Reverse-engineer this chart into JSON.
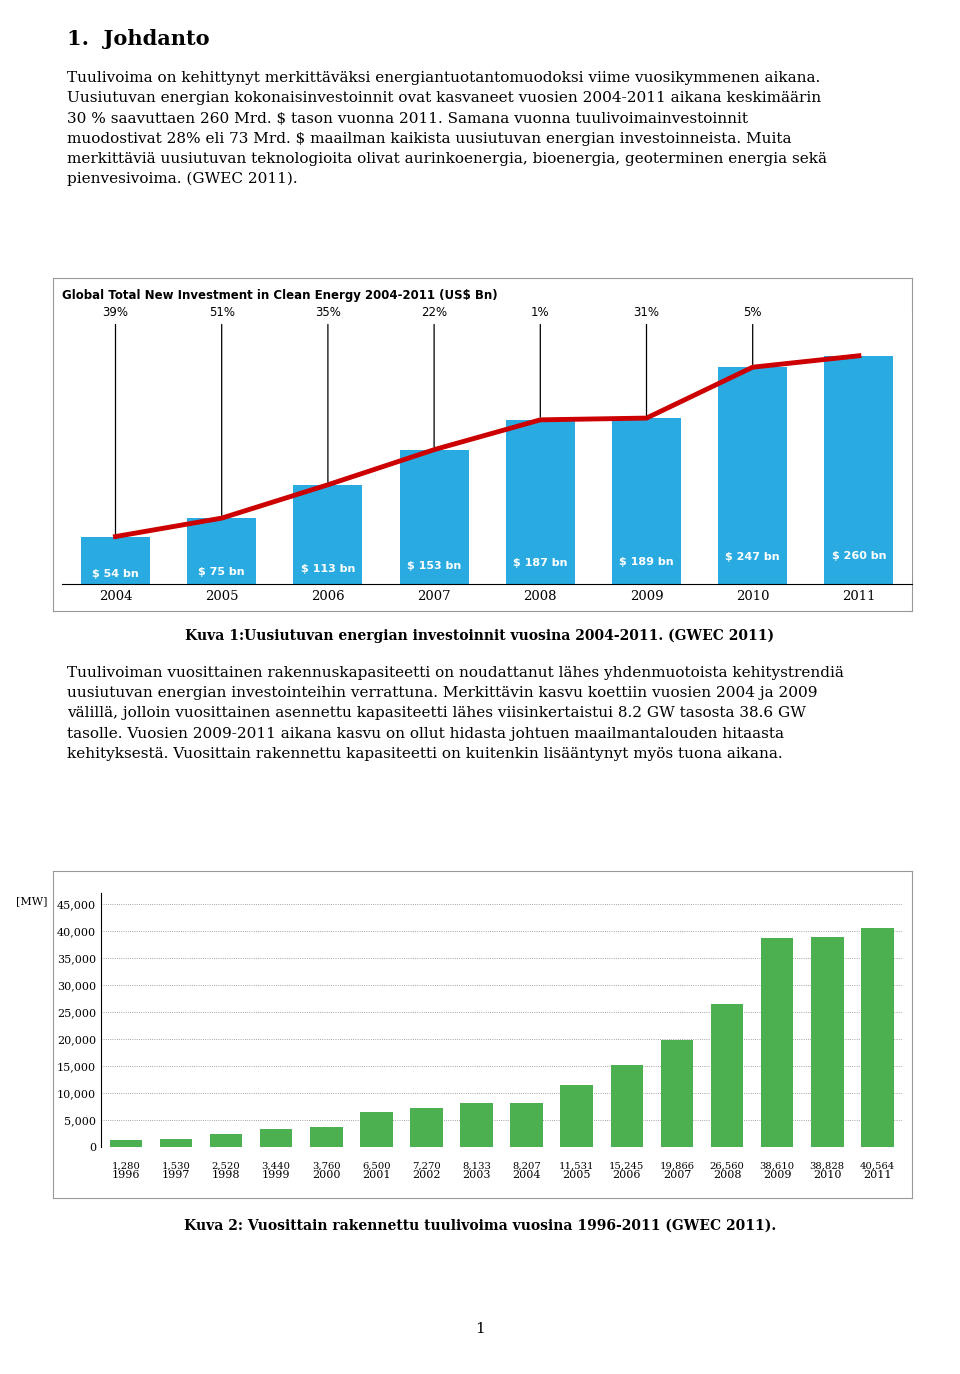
{
  "page_title": "1.  Johdanto",
  "chart1_title": "Global Total New Investment in Clean Energy 2004-2011 (US$ Bn)",
  "chart1_years": [
    "2004",
    "2005",
    "2006",
    "2007",
    "2008",
    "2009",
    "2010",
    "2011"
  ],
  "chart1_values": [
    54,
    75,
    113,
    153,
    187,
    189,
    247,
    260
  ],
  "chart1_labels": [
    "$ 54 bn",
    "$ 75 bn",
    "$ 113 bn",
    "$ 153 bn",
    "$ 187 bn",
    "$ 189 bn",
    "$ 247 bn",
    "$ 260 bn"
  ],
  "chart1_percentages": [
    "39%",
    "51%",
    "35%",
    "22%",
    "1%",
    "31%",
    "5%"
  ],
  "chart1_pct_positions": [
    0,
    1,
    2,
    3,
    4,
    5,
    6
  ],
  "chart1_bar_color": "#29ABE2",
  "chart1_line_color": "#CC0000",
  "chart1_caption": "Kuva 1:Uusiutuvan energian investoinnit vuosina 2004-2011. (GWEC 2011)",
  "chart2_years": [
    "1996",
    "1997",
    "1998",
    "1999",
    "2000",
    "2001",
    "2002",
    "2003",
    "2004",
    "2005",
    "2006",
    "2007",
    "2008",
    "2009",
    "2010",
    "2011"
  ],
  "chart2_values": [
    1280,
    1530,
    2520,
    3440,
    3760,
    6500,
    7270,
    8133,
    8207,
    11531,
    15245,
    19866,
    26560,
    38610,
    38828,
    40564
  ],
  "chart2_bottom_labels": [
    "1,280",
    "1,530",
    "2,520",
    "3,440",
    "3,760",
    "6,500",
    "7,270",
    "8,133",
    "8,207",
    "11,531",
    "15,245",
    "19,866",
    "26,560",
    "38,610",
    "38,828",
    "40,564"
  ],
  "chart2_bar_color": "#4CAF50",
  "chart2_ylabel": "[MW]",
  "chart2_yticks": [
    0,
    5000,
    10000,
    15000,
    20000,
    25000,
    30000,
    35000,
    40000,
    45000
  ],
  "chart2_ytick_labels": [
    "0",
    "5,000",
    "10,000",
    "15,000",
    "20,000",
    "25,000",
    "30,000",
    "35,000",
    "40,000",
    "45,000"
  ],
  "chart2_caption": "Kuva 2: Vuosittain rakennettu tuulivoima vuosina 1996-2011 (GWEC 2011).",
  "page_number": "1",
  "bg_color": "#FFFFFF",
  "text_color": "#000000"
}
